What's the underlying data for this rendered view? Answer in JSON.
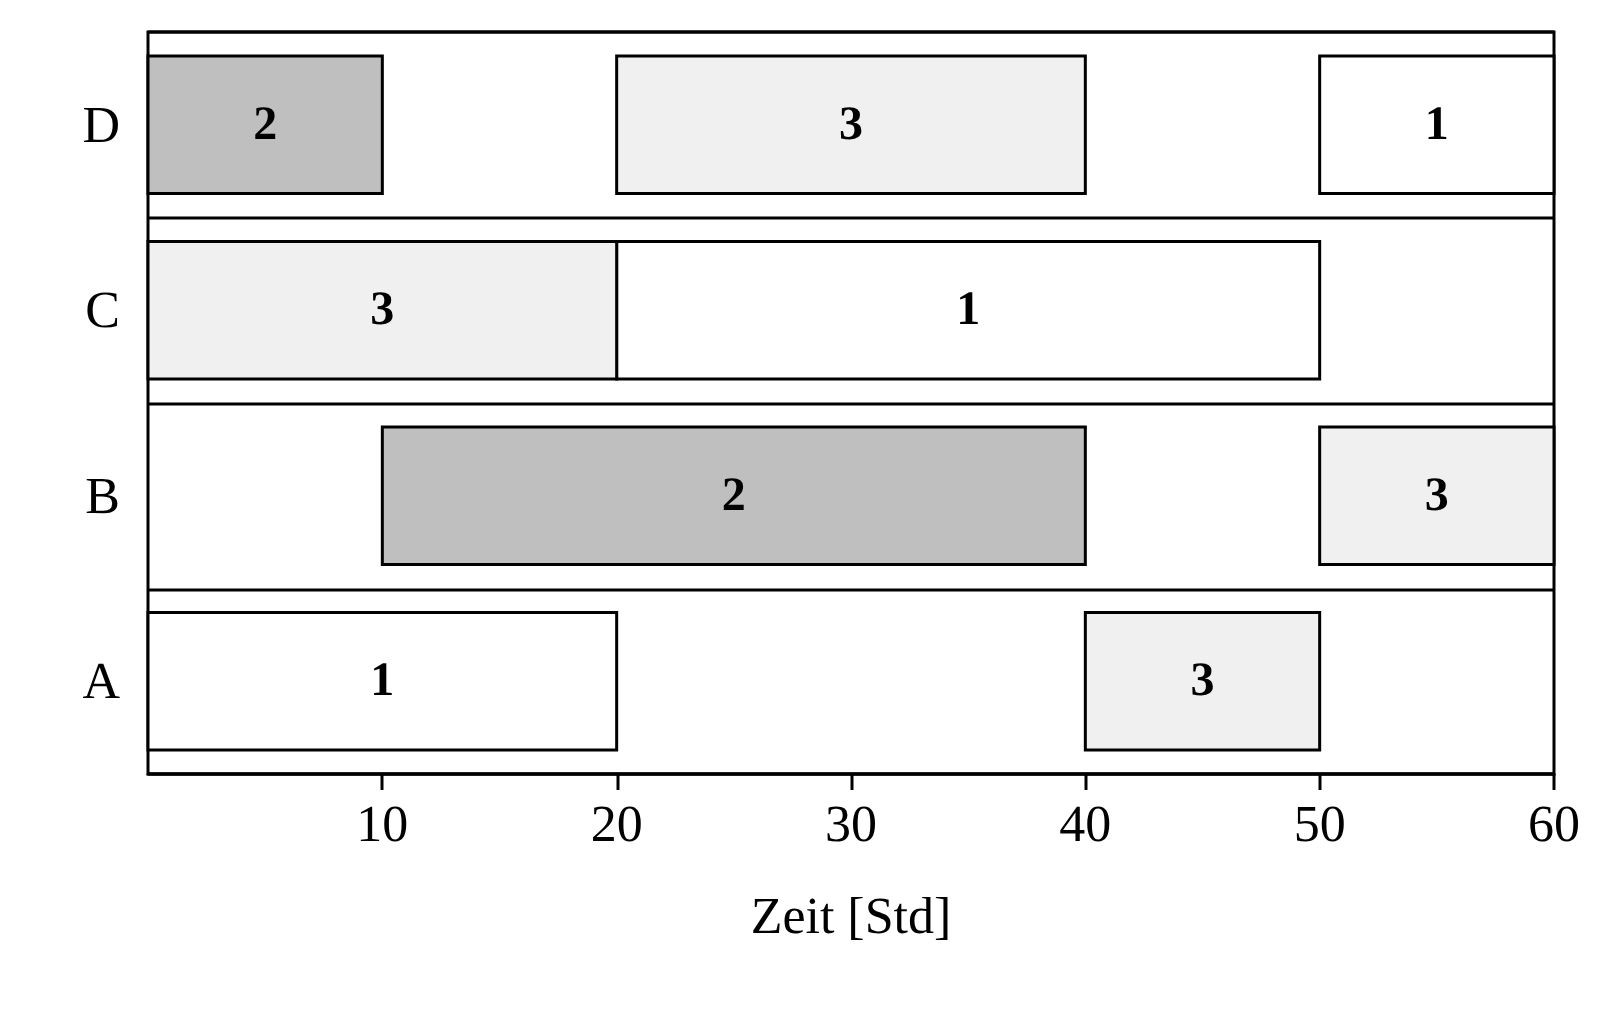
{
  "chart_data": {
    "type": "bar",
    "orientation": "horizontal",
    "xlabel": "Zeit [Std]",
    "categories": [
      "D",
      "C",
      "B",
      "A"
    ],
    "xlim": [
      0,
      60
    ],
    "xticks": [
      10,
      20,
      30,
      40,
      50,
      60
    ],
    "grid": "y",
    "series": [
      {
        "name": "1",
        "color": "#ffffff",
        "values": [
          10,
          30,
          null,
          20
        ],
        "base": [
          50,
          20,
          null,
          0
        ]
      },
      {
        "name": "2",
        "color": "#bfbfbf",
        "values": [
          10,
          null,
          30,
          null
        ],
        "base": [
          0,
          null,
          10,
          null
        ]
      },
      {
        "name": "3",
        "color": "#f0f0f0",
        "values": [
          20,
          20,
          10,
          10
        ],
        "base": [
          20,
          0,
          50,
          40
        ]
      }
    ]
  }
}
